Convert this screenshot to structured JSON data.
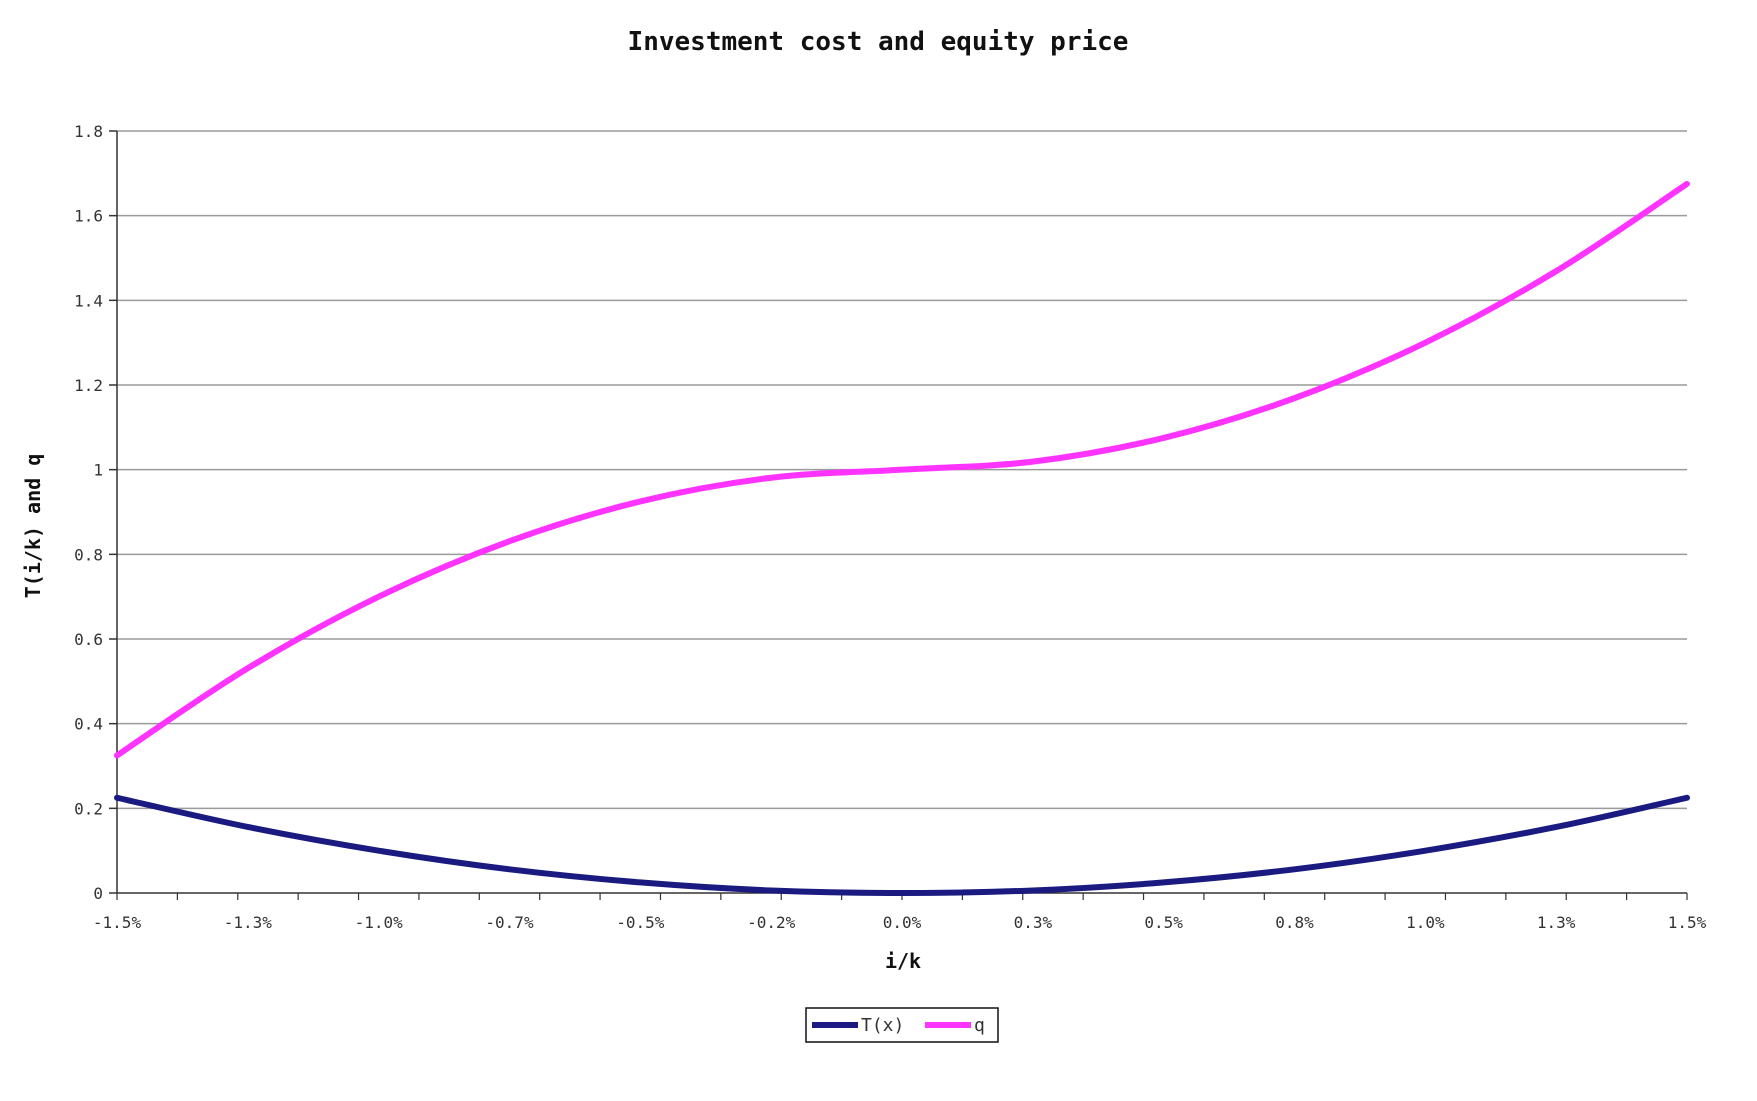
{
  "chart_data": {
    "type": "line",
    "title": "Investment cost and equity price",
    "xlabel": "i/k",
    "ylabel": "T(i/k) and q",
    "xlim": [
      -0.015,
      0.015
    ],
    "ylim": [
      0,
      1.8
    ],
    "x_tick_values": [
      -0.015,
      -0.0125,
      -0.01,
      -0.0075,
      -0.005,
      -0.0025,
      0,
      0.0025,
      0.005,
      0.0075,
      0.01,
      0.0125,
      0.015
    ],
    "x_tick_labels": [
      "-1.5%",
      "-1.3%",
      "-1.0%",
      "-0.7%",
      "-0.5%",
      "-0.2%",
      "0.0%",
      "0.3%",
      "0.5%",
      "0.8%",
      "1.0%",
      "1.3%",
      "1.5%"
    ],
    "y_tick_values": [
      0,
      0.2,
      0.4,
      0.6,
      0.8,
      1,
      1.2,
      1.4,
      1.6,
      1.8
    ],
    "y_tick_labels": [
      "0",
      "0.2",
      "0.4",
      "0.6",
      "0.8",
      "1",
      "1.2",
      "1.4",
      "1.6",
      "1.8"
    ],
    "grid": true,
    "legend_position": "bottom-center",
    "x": [
      -0.015,
      -0.0125,
      -0.01,
      -0.0075,
      -0.005,
      -0.0025,
      0,
      0.0025,
      0.005,
      0.0075,
      0.01,
      0.0125,
      0.015
    ],
    "series": [
      {
        "name": "T(x)",
        "color": "#1a1a80",
        "values": [
          0.225,
          0.156,
          0.1,
          0.056,
          0.025,
          0.006,
          0,
          0.006,
          0.025,
          0.056,
          0.1,
          0.156,
          0.225
        ]
      },
      {
        "name": "q",
        "color": "#ff33ff",
        "values": [
          0.325,
          0.531,
          0.7,
          0.831,
          0.925,
          0.981,
          1.0,
          1.019,
          1.075,
          1.169,
          1.3,
          1.469,
          1.675
        ]
      }
    ]
  }
}
